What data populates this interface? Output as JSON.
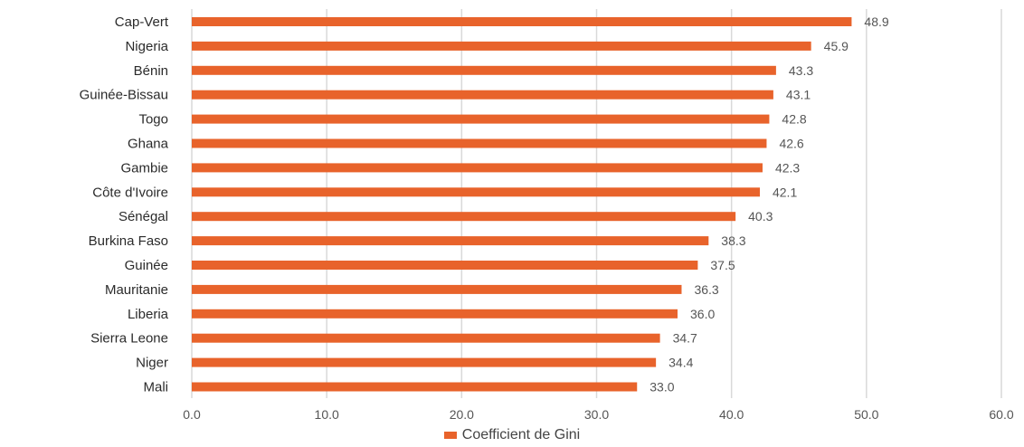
{
  "chart_data": {
    "type": "bar",
    "orientation": "horizontal",
    "categories": [
      "Cap-Vert",
      "Nigeria",
      "Bénin",
      "Guinée-Bissau",
      "Togo",
      "Ghana",
      "Gambie",
      "Côte d'Ivoire",
      "Sénégal",
      "Burkina Faso",
      "Guinée",
      "Mauritanie",
      "Liberia",
      "Sierra Leone",
      "Niger",
      "Mali"
    ],
    "series": [
      {
        "name": "Coefficient de Gini",
        "values": [
          48.9,
          45.9,
          43.3,
          43.1,
          42.8,
          42.6,
          42.3,
          42.1,
          40.3,
          38.3,
          37.5,
          36.3,
          36.0,
          34.7,
          34.4,
          33.0
        ],
        "labels": [
          "48.9",
          "45.9",
          "43.3",
          "43.1",
          "42.8",
          "42.6",
          "42.3",
          "42.1",
          "40.3",
          "38.3",
          "37.5",
          "36.3",
          "36.0",
          "34.7",
          "34.4",
          "33.0"
        ],
        "color": "#e8632b"
      }
    ],
    "xlim": [
      0,
      60
    ],
    "xticks": [
      "0.0",
      "10.0",
      "20.0",
      "30.0",
      "40.0",
      "50.0",
      "60.0"
    ],
    "xtick_values": [
      0,
      10,
      20,
      30,
      40,
      50,
      60
    ],
    "title": "",
    "xlabel": "",
    "ylabel": "",
    "grid": "vertical",
    "gridline_color": "#d9d9d9",
    "legend_position": "bottom"
  }
}
